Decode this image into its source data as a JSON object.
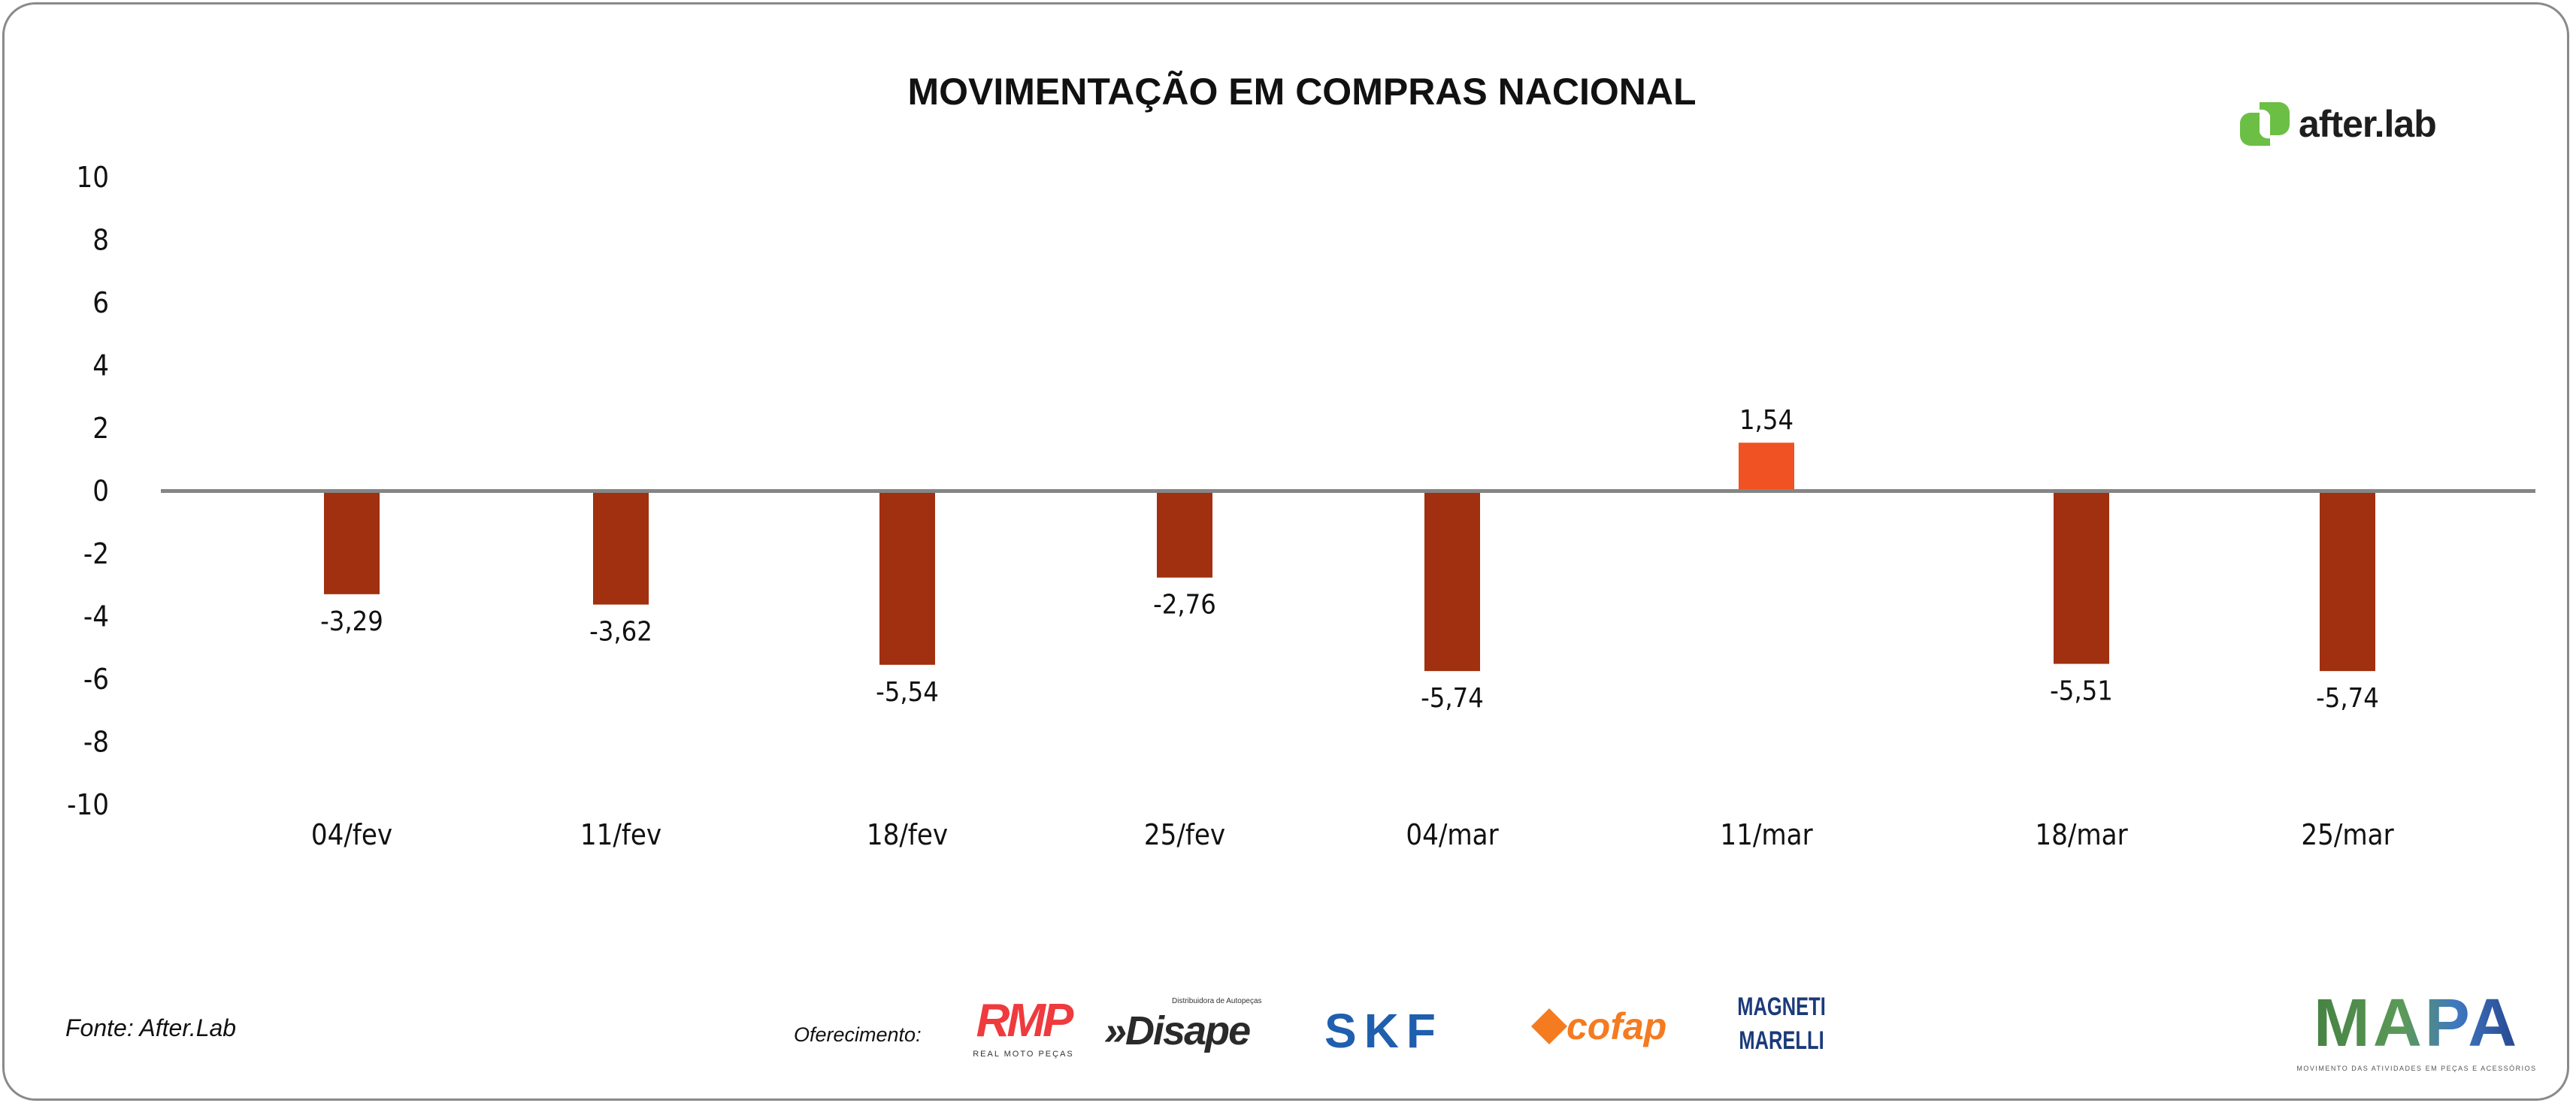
{
  "chart_data": {
    "type": "bar",
    "title": "MOVIMENTAÇÃO EM COMPRAS NACIONAL",
    "categories": [
      "04/fev",
      "11/fev",
      "18/fev",
      "25/fev",
      "04/mar",
      "11/mar",
      "18/mar",
      "25/mar"
    ],
    "values": [
      -3.29,
      -3.62,
      -5.54,
      -2.76,
      -5.74,
      1.54,
      -5.51,
      -5.74
    ],
    "data_labels": [
      "-3,29",
      "-3,62",
      "-5,54",
      "-2,76",
      "-5,74",
      "1,54",
      "-5,51",
      "-5,74"
    ],
    "ylim": [
      -10,
      10
    ],
    "yticks": [
      "10",
      "8",
      "6",
      "4",
      "2",
      "0",
      "-2",
      "-4",
      "-6",
      "-8",
      "-10"
    ],
    "xlabel": "",
    "ylabel": "",
    "grid": false,
    "colors": {
      "negative": "#a0300f",
      "positive": "#f05223",
      "axis": "#858585"
    }
  },
  "footer": {
    "source": "Fonte: After.Lab",
    "sponsors_label": "Oferecimento:",
    "sponsors": {
      "rmp": "RMP",
      "rmp_sub": "REAL MOTO PEÇAS",
      "disape": "»Disape",
      "disape_sub": "Distribuidora de Autopeças",
      "skf": "SKF",
      "cofap": "cofap",
      "magneti1": "MAGNETI",
      "magneti2": "MARELLI"
    },
    "mapa": "MAPA",
    "mapa_sub": "MOVIMENTO DAS ATIVIDADES EM PEÇAS E ACESSÓRIOS"
  },
  "brand": {
    "name": "after.lab",
    "color": "#6cbf45"
  }
}
